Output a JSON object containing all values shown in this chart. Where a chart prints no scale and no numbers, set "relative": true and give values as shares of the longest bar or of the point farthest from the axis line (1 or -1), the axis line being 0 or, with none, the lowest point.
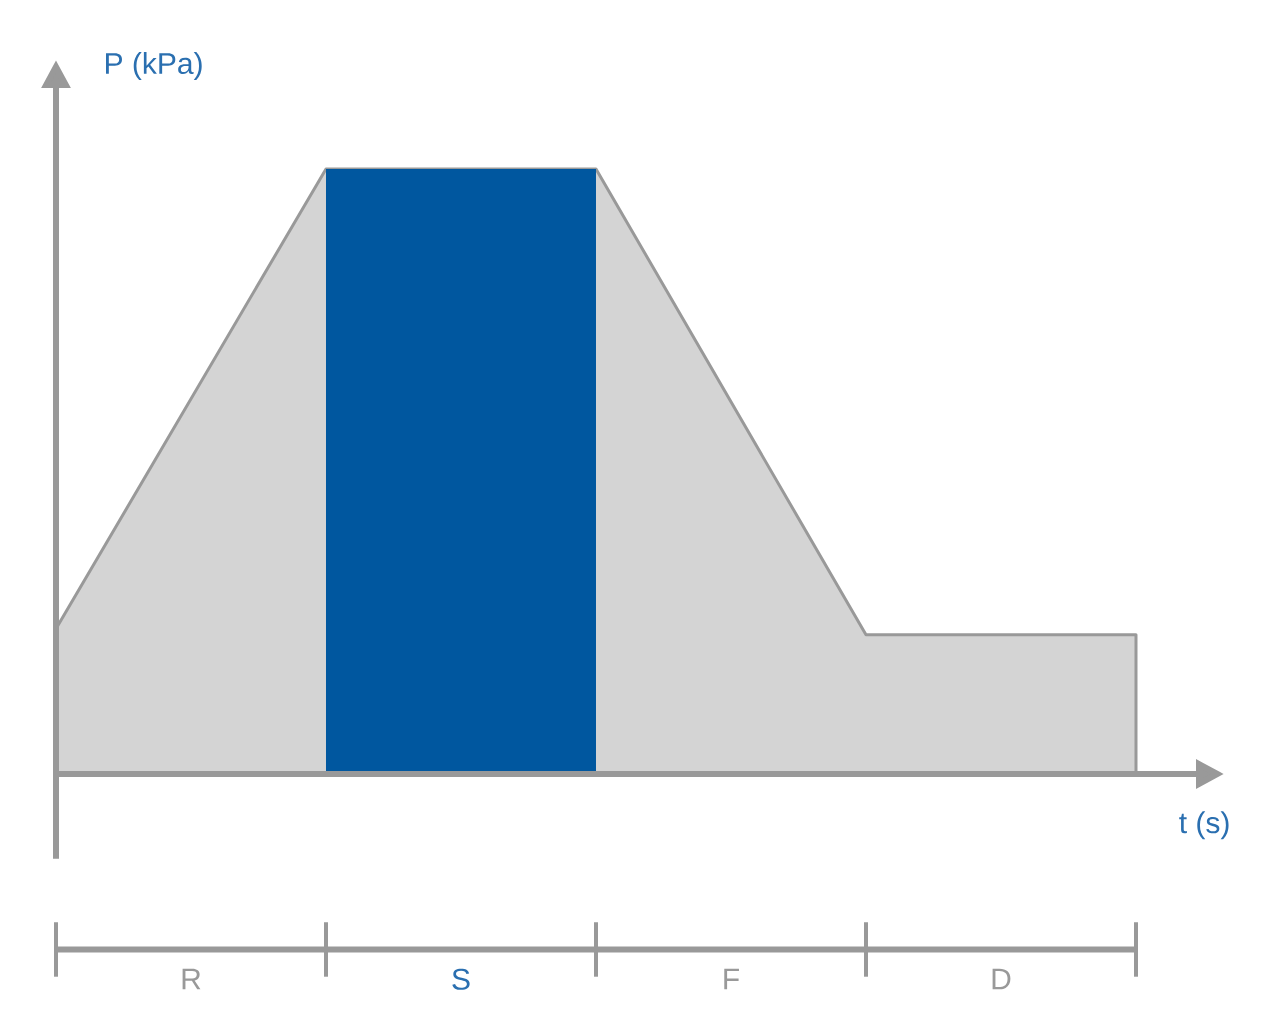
{
  "chart_data": {
    "type": "area",
    "relative": true,
    "xlabel": "t (s)",
    "ylabel": "P (kPa)",
    "categories": [
      null,
      null,
      null,
      null,
      null
    ],
    "series": [
      {
        "color": "#d4d4d4",
        "values": [
          0.24,
          1,
          1,
          0.23,
          0.23
        ]
      },
      {
        "color": "#00579f",
        "values": [
          null,
          1,
          1,
          null,
          null
        ]
      }
    ],
    "annotations": [
      "R",
      "S",
      "F",
      "D"
    ]
  }
}
